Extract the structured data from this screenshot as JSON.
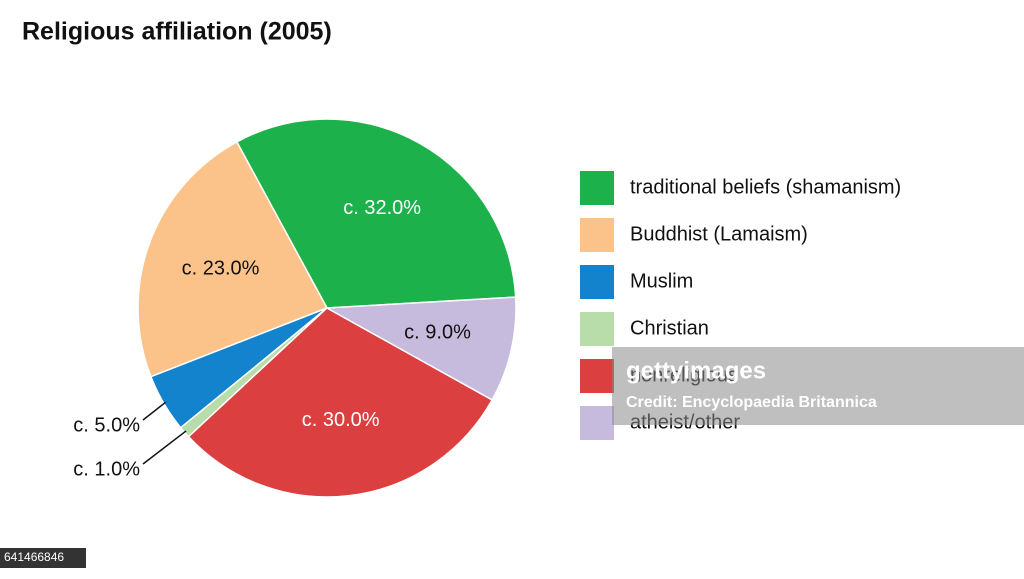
{
  "chart_data": {
    "type": "pie",
    "title": "Religious affiliation (2005)",
    "categories": [
      "traditional beliefs (shamanism)",
      "Buddhist (Lamaism)",
      "Muslim",
      "Christian",
      "nonreligious",
      "atheist/other"
    ],
    "values": [
      32,
      23,
      5,
      1,
      30,
      9
    ],
    "value_labels": [
      "c. 32.0%",
      "c. 23.0%",
      "c. 5.0%",
      "c. 1.0%",
      "c. 30.0%",
      "c. 9.0%"
    ],
    "colors": [
      "#1db14b",
      "#fbc38a",
      "#1383cd",
      "#b8dcaa",
      "#db3f3f",
      "#c6badd"
    ],
    "legend": "right"
  },
  "watermark": {
    "brand": "gettyimages",
    "credit": "Credit: Encyclopaedia Britannica",
    "id": "641466846"
  }
}
